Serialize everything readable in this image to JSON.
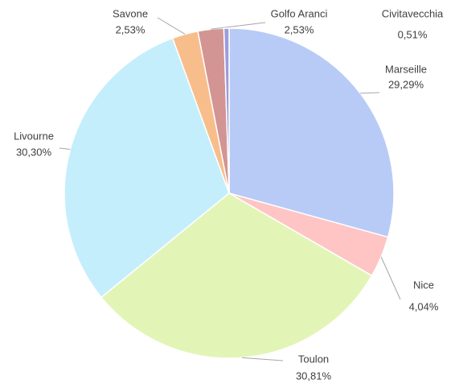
{
  "chart_data": {
    "type": "pie",
    "categories": [
      "Marseille",
      "Nice",
      "Toulon",
      "Livourne",
      "Savone",
      "Golfo Aranci",
      "Civitavecchia"
    ],
    "values": [
      29.29,
      4.04,
      30.81,
      30.3,
      2.53,
      2.53,
      0.51
    ],
    "value_labels": [
      "29,29%",
      "4,04%",
      "30,81%",
      "30,30%",
      "2,53%",
      "2,53%",
      "0,51%"
    ],
    "colors": [
      "#b7cbf6",
      "#ffc4c4",
      "#e2f5b6",
      "#c4eefc",
      "#f7be8c",
      "#d39494",
      "#9c9cdc"
    ]
  }
}
